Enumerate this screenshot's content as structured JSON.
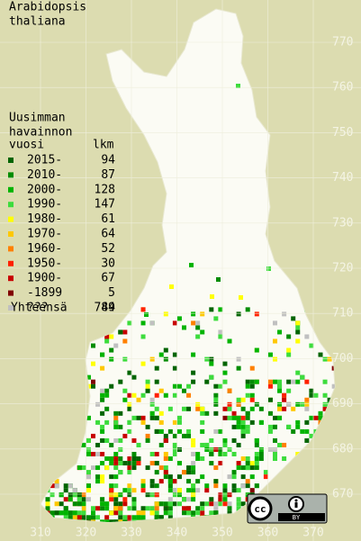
{
  "title": [
    "Arabidopsis",
    "thaliana"
  ],
  "legend": {
    "heading": [
      "Uusimman",
      "havainnon",
      "vuosi"
    ],
    "count_heading": "lkm",
    "rows": [
      {
        "label": "2015-",
        "count": 94,
        "color": "#006400"
      },
      {
        "label": "2010-",
        "count": 87,
        "color": "#008c00"
      },
      {
        "label": "2000-",
        "count": 128,
        "color": "#00b400"
      },
      {
        "label": "1990-",
        "count": 147,
        "color": "#3cdc3c"
      },
      {
        "label": "1980-",
        "count": 61,
        "color": "#ffff00"
      },
      {
        "label": "1970-",
        "count": 64,
        "color": "#ffc800"
      },
      {
        "label": "1960-",
        "count": 52,
        "color": "#ff8000"
      },
      {
        "label": "1950-",
        "count": 30,
        "color": "#ff2000"
      },
      {
        "label": "1900-",
        "count": 67,
        "color": "#c80000"
      },
      {
        "label": "-1899",
        "count": 5,
        "color": "#800000"
      },
      {
        "label": "???",
        "count": 49,
        "color": "#c0c0c0"
      }
    ],
    "total_label": "Yhteensä",
    "total": 784
  },
  "northing_ticks": [
    670,
    680,
    690,
    700,
    710,
    720,
    730,
    740,
    750,
    760,
    770
  ],
  "easting_ticks": [
    310,
    320,
    330,
    340,
    350,
    360,
    370
  ],
  "license": {
    "symbol": "cc",
    "text": "BY"
  }
}
